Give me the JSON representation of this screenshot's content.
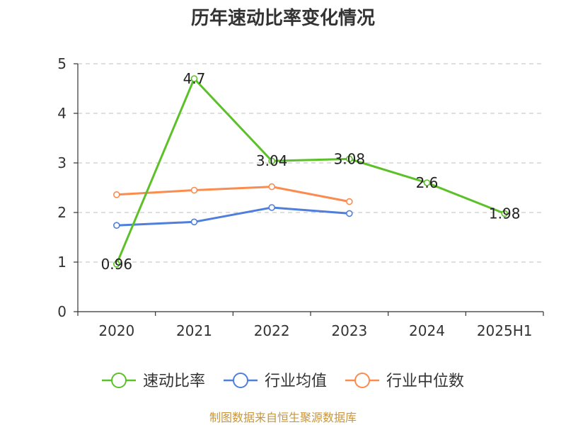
{
  "chart_data": {
    "type": "line",
    "title": "历年速动比率变化情况",
    "categories": [
      "2020",
      "2021",
      "2022",
      "2023",
      "2024",
      "2025H1"
    ],
    "y_ticks": [
      "0",
      "1",
      "2",
      "3",
      "4",
      "5"
    ],
    "ylim": [
      0,
      5
    ],
    "grid": true,
    "legend_position": "bottom",
    "series": [
      {
        "name": "速动比率",
        "color": "#5cc128",
        "values": [
          0.96,
          4.7,
          3.04,
          3.08,
          2.6,
          1.98
        ],
        "labels": [
          "0.96",
          "4.7",
          "3.04",
          "3.08",
          "2.6",
          "1.98"
        ]
      },
      {
        "name": "行业均值",
        "color": "#4f7fdb",
        "values": [
          1.74,
          1.81,
          2.1,
          1.98,
          null,
          null
        ]
      },
      {
        "name": "行业中位数",
        "color": "#fa8c50",
        "values": [
          2.36,
          2.45,
          2.52,
          2.22,
          null,
          null
        ]
      }
    ]
  },
  "footer": {
    "source": "制图数据来自恒生聚源数据库"
  }
}
